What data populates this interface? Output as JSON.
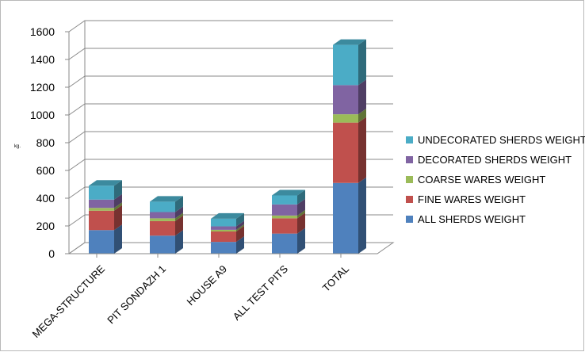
{
  "chart_data": {
    "type": "bar",
    "stacked": true,
    "three_d": true,
    "categories": [
      "MEGA-STRUCTURE",
      "PIT SONDAZH 1",
      "HOUSE A9",
      "ALL TEST PITS",
      "TOTAL"
    ],
    "series": [
      {
        "name": "ALL SHERDS WEIGHT",
        "color": "#4f81bd",
        "values": [
          170,
          130,
          85,
          145,
          510
        ]
      },
      {
        "name": "FINE WARES WEIGHT",
        "color": "#c0504d",
        "values": [
          140,
          105,
          75,
          110,
          435
        ]
      },
      {
        "name": "COARSE WARES WEIGHT",
        "color": "#9bbb59",
        "values": [
          20,
          20,
          12,
          20,
          60
        ]
      },
      {
        "name": "DECORATED SHERDS WEIGHT",
        "color": "#8064a2",
        "values": [
          60,
          45,
          25,
          80,
          210
        ]
      },
      {
        "name": "UNDECORATED SHERDS WEIGHT",
        "color": "#4bacc6",
        "values": [
          100,
          75,
          55,
          65,
          290
        ]
      }
    ],
    "ylabel": "kg.",
    "ylim": [
      0,
      1600
    ],
    "yticks": [
      0,
      200,
      400,
      600,
      800,
      1000,
      1200,
      1400,
      1600
    ],
    "grid": true,
    "legend_position": "right"
  }
}
